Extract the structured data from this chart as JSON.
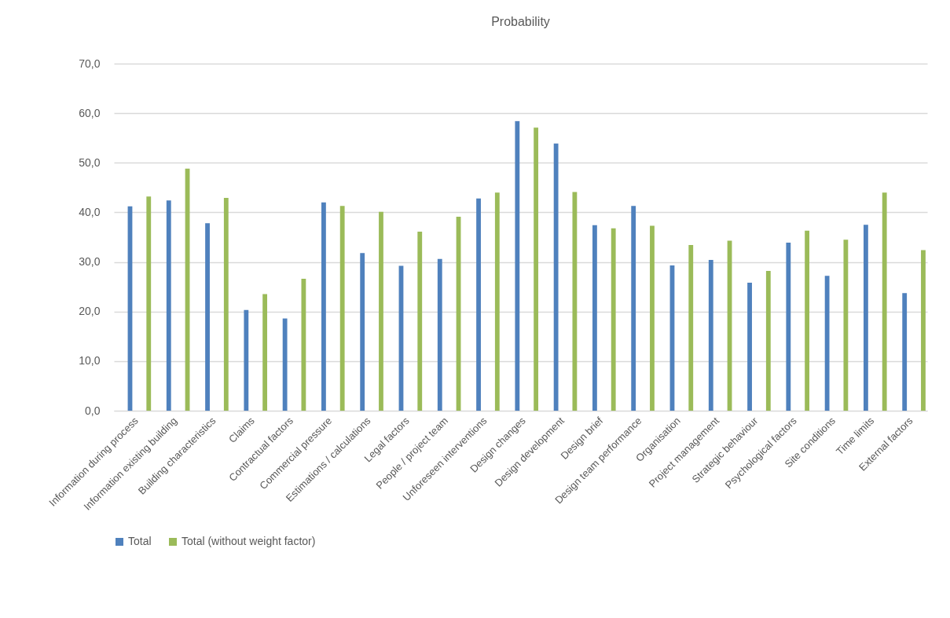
{
  "chart_data": {
    "type": "bar",
    "title": "Probability",
    "categories": [
      "Information during process",
      "Information existing building",
      "Building characteristics",
      "Claims",
      "Contractual factors",
      "Commercial pressure",
      "Estimations / calculations",
      "Legal factors",
      "People / project team",
      "Unforeseen interventions",
      "Design changes",
      "Design development",
      "Design brief",
      "Design team performance",
      "Organisation",
      "Project management",
      "Strategic behaviour",
      "Psychological factors",
      "Site conditions",
      "Time limits",
      "External factors"
    ],
    "series": [
      {
        "name": "Total",
        "color": "#4f81bd",
        "values": [
          41.2,
          42.4,
          37.8,
          20.3,
          18.6,
          42.0,
          31.8,
          29.2,
          30.6,
          42.8,
          58.4,
          53.9,
          37.4,
          41.3,
          29.3,
          30.4,
          25.8,
          33.9,
          27.2,
          37.5,
          23.7
        ]
      },
      {
        "name": "Total (without weight factor)",
        "color": "#9bbb59",
        "values": [
          43.2,
          48.8,
          42.9,
          23.5,
          26.6,
          41.3,
          40.1,
          36.1,
          39.1,
          44.0,
          57.1,
          44.1,
          36.8,
          37.3,
          33.4,
          34.3,
          28.2,
          36.3,
          34.5,
          44.0,
          32.4
        ]
      }
    ],
    "ylim": [
      0,
      70
    ],
    "yticks": [
      {
        "value": 0,
        "label": "0,0"
      },
      {
        "value": 10,
        "label": "10,0"
      },
      {
        "value": 20,
        "label": "20,0"
      },
      {
        "value": 30,
        "label": "30,0"
      },
      {
        "value": 40,
        "label": "40,0"
      },
      {
        "value": 50,
        "label": "50,0"
      },
      {
        "value": 60,
        "label": "60,0"
      },
      {
        "value": 70,
        "label": "70,0"
      }
    ],
    "grid": "y",
    "legend": "bottom"
  }
}
